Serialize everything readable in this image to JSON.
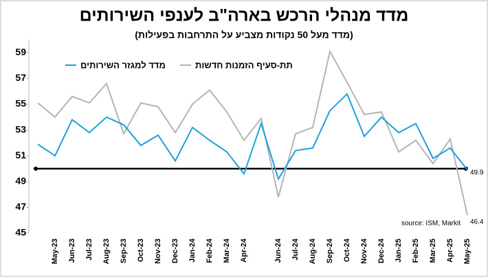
{
  "chart_data": {
    "type": "line",
    "title": "מדד מנהלי הרכש בארה\"ב לענפי השירותים",
    "subtitle": "(מדד מעל 50 נקודות מצביע על התרחבות בפעילות)",
    "source": "source: ISM, Markit",
    "categories": [
      null,
      "May-23",
      "Jun-23",
      "Jul-23",
      "Aug-23",
      "Sep-23",
      "Oct-23",
      "Nov-23",
      "Dec-23",
      "Jan-24",
      "Feb-24",
      "Mar-24",
      "Apr-24",
      null,
      "Jun-24",
      "Jul-24",
      "Aug-24",
      "Sep-24",
      "Oct-24",
      "Nov-24",
      "Dec-24",
      "Jan-25",
      "Feb-25",
      "Mar-25",
      "Apr-25",
      "May-25"
    ],
    "series": [
      {
        "name": "מדד למגזר השירותים",
        "color": "#1ba1dc",
        "values": [
          51.9,
          51.0,
          53.8,
          52.8,
          54.0,
          53.4,
          51.8,
          52.6,
          50.6,
          53.2,
          52.2,
          51.3,
          49.6,
          53.5,
          49.2,
          51.4,
          51.6,
          54.5,
          55.8,
          52.5,
          54.0,
          52.8,
          53.5,
          50.8,
          51.6,
          49.9
        ]
      },
      {
        "name": "תת-סעיף הזמנות חדשות",
        "color": "#b4b4b4",
        "values": [
          55.1,
          54.0,
          55.6,
          55.1,
          56.6,
          52.7,
          55.1,
          54.8,
          52.8,
          55.0,
          56.1,
          54.4,
          52.2,
          53.9,
          47.8,
          52.7,
          53.2,
          59.1,
          56.7,
          54.2,
          54.4,
          51.3,
          52.2,
          50.4,
          52.3,
          46.4
        ]
      }
    ],
    "reference_line": 50,
    "ylim": [
      45,
      60
    ],
    "yticks": [
      45,
      47,
      49,
      51,
      53,
      55,
      57,
      59
    ]
  }
}
